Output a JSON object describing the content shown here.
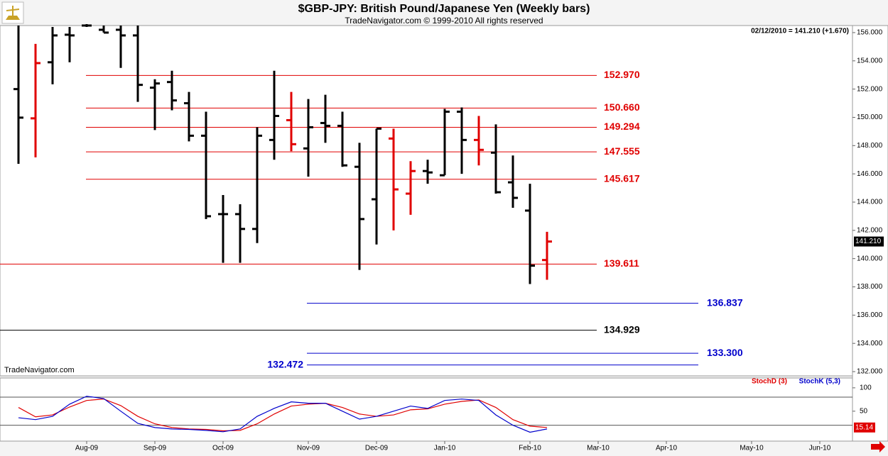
{
  "chart_data": [
    {
      "type": "ohlc",
      "title": "$GBP-JPY:  British Pound/Japanese Yen  (Weekly bars)",
      "subtitle": "TradeNavigator.com © 1999-2010 All rights reserved",
      "watermark": "TradeNavigator.com",
      "info": "02/12/2010 = 141.210 (+1.670)",
      "last_price_label": "141.210",
      "ylim": [
        131.7,
        156.5
      ],
      "yticks": [
        {
          "value": 132,
          "label": "132.000"
        },
        {
          "value": 134,
          "label": "134.000"
        },
        {
          "value": 136,
          "label": "136.000"
        },
        {
          "value": 138,
          "label": "138.000"
        },
        {
          "value": 140,
          "label": "140.000"
        },
        {
          "value": 142,
          "label": "142.000"
        },
        {
          "value": 144,
          "label": "144.000"
        },
        {
          "value": 146,
          "label": "146.000"
        },
        {
          "value": 148,
          "label": "148.000"
        },
        {
          "value": 150,
          "label": "150.000"
        },
        {
          "value": 152,
          "label": "152.000"
        },
        {
          "value": 154,
          "label": "154.000"
        },
        {
          "value": 156,
          "label": "156.000"
        }
      ],
      "open": [
        152.0,
        149.93,
        153.9,
        155.85,
        156.5,
        156.2,
        156.2,
        155.8,
        152.1,
        152.5,
        151.0,
        148.7,
        143.15,
        143.15,
        142.1,
        148.4,
        149.8,
        147.8,
        149.6,
        149.4,
        146.5,
        144.2,
        148.5,
        144.6,
        146.2,
        145.9,
        150.4,
        148.4,
        147.5,
        145.4,
        143.4,
        139.9
      ],
      "high": [
        156.5,
        155.2,
        156.4,
        156.4,
        156.6,
        156.5,
        156.5,
        156.5,
        152.7,
        153.3,
        151.8,
        150.4,
        144.5,
        143.85,
        149.3,
        153.3,
        151.8,
        151.3,
        151.6,
        150.4,
        148.2,
        149.2,
        149.2,
        146.9,
        147.0,
        150.6,
        150.7,
        150.1,
        149.5,
        147.3,
        145.3,
        141.9
      ],
      "low": [
        146.71,
        147.17,
        152.34,
        153.9,
        156.4,
        156.0,
        153.5,
        151.1,
        149.1,
        150.5,
        148.3,
        142.8,
        139.7,
        139.7,
        141.1,
        147.0,
        147.6,
        145.8,
        148.2,
        146.5,
        139.2,
        141.0,
        142.0,
        143.1,
        145.3,
        145.9,
        146.0,
        146.6,
        144.6,
        143.6,
        138.2,
        138.5
      ],
      "close": [
        149.98,
        153.84,
        155.8,
        155.8,
        156.5,
        156.0,
        155.8,
        152.3,
        152.4,
        151.2,
        148.7,
        143.0,
        143.15,
        142.1,
        148.7,
        150.1,
        148.1,
        149.3,
        149.4,
        146.6,
        142.8,
        149.2,
        144.9,
        146.2,
        146.1,
        150.4,
        148.4,
        147.7,
        144.7,
        144.3,
        139.5,
        141.21
      ],
      "bar_colors": [
        "#000",
        "#e00000",
        "#000",
        "#000",
        "#000",
        "#000",
        "#000",
        "#000",
        "#000",
        "#000",
        "#000",
        "#000",
        "#000",
        "#000",
        "#000",
        "#000",
        "#e00000",
        "#000",
        "#000",
        "#000",
        "#000",
        "#000",
        "#e00000",
        "#e00000",
        "#000",
        "#000",
        "#000",
        "#e00000",
        "#000",
        "#000",
        "#000",
        "#e00000"
      ],
      "levels": [
        {
          "value": 152.97,
          "label": "152.970",
          "color": "#e00000"
        },
        {
          "value": 150.66,
          "label": "150.660",
          "color": "#e00000"
        },
        {
          "value": 149.294,
          "label": "149.294",
          "color": "#e00000"
        },
        {
          "value": 147.555,
          "label": "147.555",
          "color": "#e00000"
        },
        {
          "value": 145.617,
          "label": "145.617",
          "color": "#e00000"
        },
        {
          "value": 139.611,
          "label": "139.611",
          "color": "#e00000"
        },
        {
          "value": 136.837,
          "label": "136.837",
          "color": "#0000cc"
        },
        {
          "value": 134.929,
          "label": "134.929",
          "color": "#000000"
        },
        {
          "value": 133.3,
          "label": "133.300",
          "color": "#0000cc"
        },
        {
          "value": 132.472,
          "label": "132.472",
          "color": "#0000cc"
        }
      ]
    },
    {
      "type": "line",
      "categories": [
        null,
        null,
        null,
        null,
        "Aug-09",
        null,
        null,
        null,
        "Sep-09",
        null,
        null,
        null,
        "Oct-09",
        null,
        null,
        null,
        null,
        "Nov-09",
        null,
        null,
        null,
        "Dec-09",
        null,
        null,
        null,
        "Jan-10",
        null,
        null,
        null,
        null,
        "Feb-10",
        null,
        null,
        null,
        "Mar-10",
        null,
        null,
        null,
        "Apr-10",
        null,
        null,
        null,
        null,
        "May-10",
        null,
        null,
        null,
        "Jun-10"
      ],
      "ylim": [
        -14,
        118
      ],
      "yticks": [
        50,
        100
      ],
      "levels": [
        80,
        20
      ],
      "series": [
        {
          "name": "StochD (3)",
          "color": "#e00000",
          "values": [
            58,
            38,
            42,
            59,
            73,
            76,
            62,
            39,
            23,
            15,
            12,
            11,
            8,
            9,
            23,
            44,
            61,
            65,
            67,
            58,
            44,
            39,
            42,
            53,
            55,
            65,
            71,
            74,
            58,
            32,
            18,
            15.14,
            null,
            null,
            null,
            null,
            null,
            null,
            null,
            null,
            null,
            null,
            null,
            null,
            null,
            null,
            null,
            null
          ]
        },
        {
          "name": "StochK (5,3)",
          "color": "#0000cc",
          "values": [
            36,
            32,
            39,
            65,
            82,
            77,
            50,
            24,
            15,
            12,
            11,
            9,
            6,
            12,
            39,
            56,
            70,
            67,
            67,
            50,
            33,
            39,
            50,
            61,
            56,
            73,
            76,
            73,
            42,
            20,
            5,
            12,
            null,
            null,
            null,
            null,
            null,
            null,
            null,
            null,
            null,
            null,
            null,
            null,
            null,
            null,
            null,
            null
          ]
        }
      ]
    }
  ]
}
